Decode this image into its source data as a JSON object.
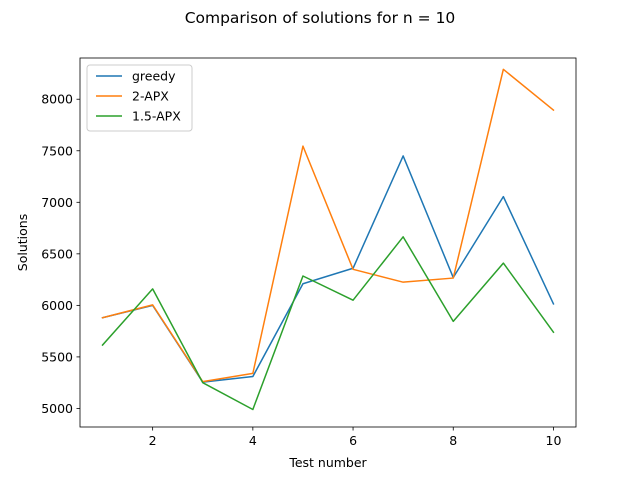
{
  "chart_data": {
    "type": "line",
    "title": "Comparison of solutions for n = 10",
    "xlabel": "Test number",
    "ylabel": "Solutions",
    "x": [
      1,
      2,
      3,
      4,
      5,
      6,
      7,
      8,
      9,
      10
    ],
    "xlim": [
      0.55,
      10.45
    ],
    "ylim": [
      4820,
      8400
    ],
    "xticks": [
      2,
      4,
      6,
      8,
      10
    ],
    "yticks": [
      5000,
      5500,
      6000,
      6500,
      7000,
      7500,
      8000
    ],
    "grid": false,
    "legend_position": "top-left",
    "series": [
      {
        "name": "greedy",
        "color": "#1f77b4",
        "values": [
          5880,
          6000,
          5255,
          5310,
          6210,
          6360,
          7450,
          6270,
          7055,
          6015
        ]
      },
      {
        "name": "2-APX",
        "color": "#ff7f0e",
        "values": [
          5880,
          6005,
          5260,
          5340,
          7545,
          6350,
          6225,
          6265,
          8290,
          7895
        ]
      },
      {
        "name": "1.5-APX",
        "color": "#2ca02c",
        "values": [
          5615,
          6160,
          5250,
          4990,
          6285,
          6050,
          6665,
          5845,
          6410,
          5740
        ]
      }
    ]
  }
}
